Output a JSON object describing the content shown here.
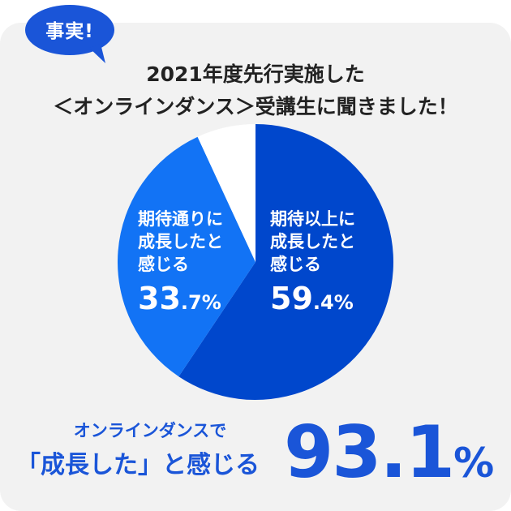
{
  "badge": {
    "text": "事実!"
  },
  "title": {
    "line1": "2021年度先行実施した",
    "line2": "＜オンラインダンス＞受講生に聞きました！"
  },
  "chart_data": {
    "type": "pie",
    "slices": [
      {
        "label": "期待以上に\n成長したと\n感じる",
        "value": 59.4,
        "value_int": "59",
        "value_dec": ".4%",
        "color": "#0047cc"
      },
      {
        "label": "期待通りに\n成長したと\n感じる",
        "value": 33.7,
        "value_int": "33",
        "value_dec": ".7%",
        "color": "#1273f5"
      },
      {
        "label": "",
        "value": 6.9,
        "color": "#ffffff"
      }
    ]
  },
  "summary": {
    "sub": "オンラインダンスで",
    "main": "「成長した」と感じる",
    "value_int": "93.1",
    "value_unit": "%"
  },
  "colors": {
    "accent": "#1a55d8",
    "card_bg": "#f2f2f2"
  }
}
